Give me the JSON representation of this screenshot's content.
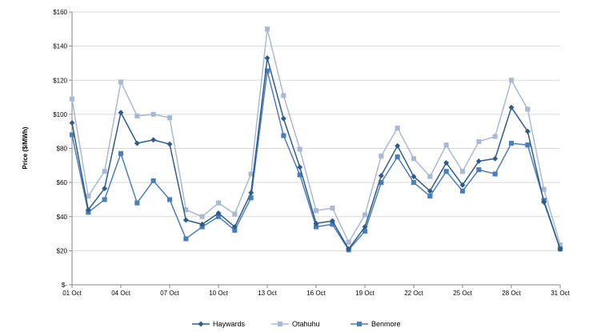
{
  "chart_data": {
    "type": "line",
    "title": "",
    "xlabel": "",
    "ylabel": "Price ($/MWh)",
    "ylim": [
      0,
      160
    ],
    "yticks": [
      0,
      20,
      40,
      60,
      80,
      100,
      120,
      140,
      160
    ],
    "ytick_labels": [
      "$-",
      "$20",
      "$40",
      "$60",
      "$80",
      "$100",
      "$120",
      "$140",
      "$160"
    ],
    "x": [
      1,
      2,
      3,
      4,
      5,
      6,
      7,
      8,
      9,
      10,
      11,
      12,
      13,
      14,
      15,
      16,
      17,
      18,
      19,
      20,
      21,
      22,
      23,
      24,
      25,
      26,
      27,
      28,
      29,
      30,
      31
    ],
    "xticks": [
      1,
      4,
      7,
      10,
      13,
      16,
      19,
      22,
      25,
      28,
      31
    ],
    "xtick_labels": [
      "01 Oct",
      "04 Oct",
      "07 Oct",
      "10 Oct",
      "13 Oct",
      "16 Oct",
      "19 Oct",
      "22 Oct",
      "25 Oct",
      "28 Oct",
      "31 Oct"
    ],
    "grid": "horizontal",
    "legend": "bottom",
    "series": [
      {
        "name": "Haywards",
        "color": "#2e5c8a",
        "marker": "diamond",
        "values": [
          95,
          44,
          56.5,
          101,
          83,
          85,
          82.5,
          38,
          35.5,
          42,
          34,
          54,
          133,
          97.5,
          69,
          36,
          37.5,
          21,
          34,
          64,
          81.5,
          63.5,
          55,
          71.5,
          58.5,
          72.5,
          74,
          104,
          90,
          48.5,
          21
        ]
      },
      {
        "name": "Otahuhu",
        "color": "#a9b9d3",
        "marker": "square",
        "values": [
          109,
          52,
          66.5,
          119,
          99,
          100,
          98,
          44,
          40,
          48,
          41.5,
          65,
          150,
          111,
          79.5,
          43.5,
          45,
          25,
          41,
          75.5,
          92,
          74,
          63.5,
          82,
          66.5,
          84,
          87,
          120,
          103,
          56,
          23.5
        ]
      },
      {
        "name": "Benmore",
        "color": "#4a7ebb",
        "marker": "square",
        "values": [
          88,
          42.5,
          50,
          77,
          48,
          61,
          50,
          27,
          34,
          40,
          32,
          51,
          125.5,
          87.5,
          64.5,
          34,
          35.5,
          20.5,
          31.5,
          60,
          75,
          60,
          52,
          66.5,
          55,
          67.5,
          65,
          83,
          82,
          49.5,
          21
        ]
      }
    ]
  }
}
